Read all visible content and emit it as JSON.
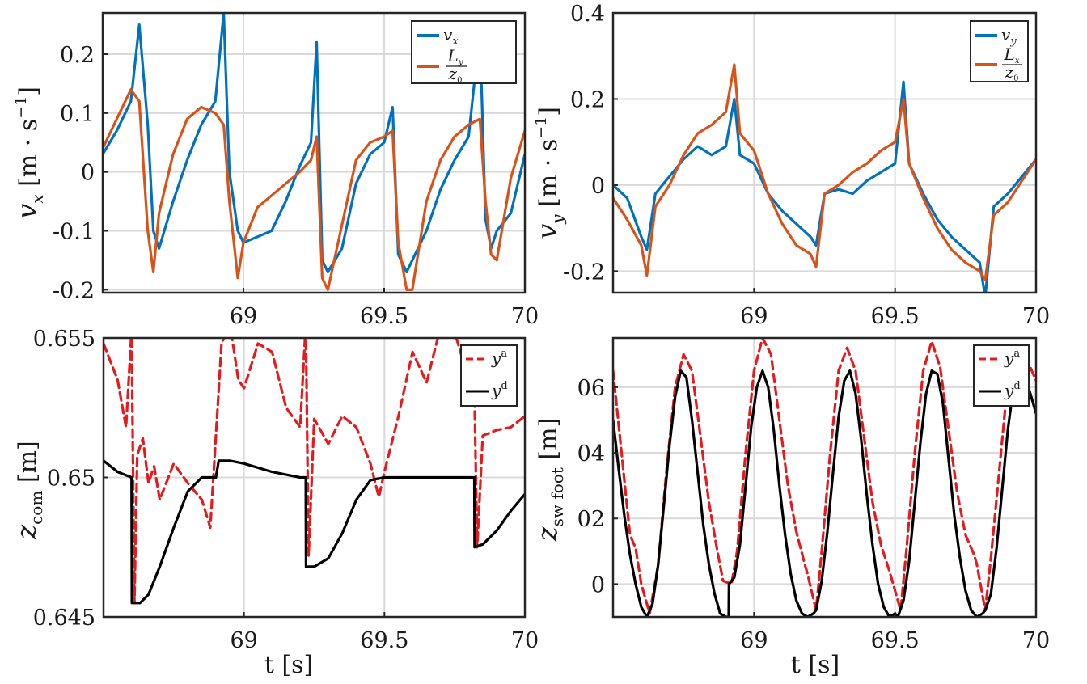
{
  "colors": {
    "blue": "#0072BD",
    "orange": "#D95319",
    "red": "#E41A1C",
    "black": "#000000"
  },
  "chart_data": [
    {
      "id": "vx",
      "type": "line",
      "ylabel": "v_x [m · s^-1]",
      "xlabel": "",
      "xlim": [
        68.5,
        70
      ],
      "ylim": [
        -0.205,
        0.27
      ],
      "xticks": [
        69,
        69.5,
        70
      ],
      "xtick_labels": [
        "69",
        "69.5",
        "70"
      ],
      "yticks": [
        -0.2,
        -0.1,
        0,
        0.1,
        0.2
      ],
      "ytick_labels": [
        "-0.2",
        "-0.1",
        "0",
        "0.1",
        "0.2"
      ],
      "legend_position": "top-right",
      "series": [
        {
          "name": "v_x",
          "color_key": "blue",
          "dashed": false,
          "x": [
            68.5,
            68.55,
            68.6,
            68.63,
            68.66,
            68.68,
            68.7,
            68.75,
            68.8,
            68.85,
            68.9,
            68.93,
            68.95,
            68.98,
            69.0,
            69.05,
            69.1,
            69.15,
            69.2,
            69.24,
            69.26,
            69.28,
            69.3,
            69.35,
            69.4,
            69.45,
            69.5,
            69.53,
            69.55,
            69.58,
            69.6,
            69.65,
            69.7,
            69.75,
            69.8,
            69.84,
            69.86,
            69.88,
            69.9,
            69.95,
            70.0
          ],
          "y": [
            0.03,
            0.07,
            0.12,
            0.25,
            0.08,
            -0.1,
            -0.13,
            -0.05,
            0.02,
            0.08,
            0.12,
            0.27,
            0.0,
            -0.1,
            -0.12,
            -0.11,
            -0.1,
            -0.05,
            0.01,
            0.05,
            0.22,
            -0.15,
            -0.17,
            -0.13,
            -0.02,
            0.03,
            0.05,
            0.11,
            -0.14,
            -0.17,
            -0.15,
            -0.1,
            -0.03,
            0.02,
            0.06,
            0.24,
            -0.08,
            -0.13,
            -0.1,
            -0.07,
            0.03
          ]
        },
        {
          "name": "L_y / z_0",
          "color_key": "orange",
          "dashed": false,
          "x": [
            68.5,
            68.55,
            68.6,
            68.63,
            68.66,
            68.68,
            68.7,
            68.75,
            68.8,
            68.85,
            68.9,
            68.93,
            68.95,
            68.98,
            69.0,
            69.05,
            69.1,
            69.15,
            69.2,
            69.24,
            69.26,
            69.28,
            69.3,
            69.35,
            69.4,
            69.45,
            69.5,
            69.53,
            69.55,
            69.58,
            69.6,
            69.65,
            69.7,
            69.75,
            69.8,
            69.84,
            69.86,
            69.88,
            69.9,
            69.95,
            70.0
          ],
          "y": [
            0.04,
            0.09,
            0.14,
            0.12,
            -0.1,
            -0.17,
            -0.07,
            0.03,
            0.09,
            0.11,
            0.1,
            0.08,
            -0.05,
            -0.18,
            -0.12,
            -0.06,
            -0.04,
            -0.02,
            0.0,
            0.02,
            0.06,
            -0.18,
            -0.2,
            -0.09,
            0.02,
            0.05,
            0.06,
            0.07,
            -0.12,
            -0.2,
            -0.2,
            -0.05,
            0.02,
            0.06,
            0.08,
            0.09,
            -0.05,
            -0.14,
            -0.15,
            -0.01,
            0.07
          ]
        }
      ]
    },
    {
      "id": "vy",
      "type": "line",
      "ylabel": "v_y [m · s^-1]",
      "xlabel": "",
      "xlim": [
        68.5,
        70
      ],
      "ylim": [
        -0.25,
        0.4
      ],
      "xticks": [
        69,
        69.5,
        70
      ],
      "xtick_labels": [
        "69",
        "69.5",
        "70"
      ],
      "yticks": [
        -0.2,
        0,
        0.2,
        0.4
      ],
      "ytick_labels": [
        "-0.2",
        "0",
        "0.2",
        "0.4"
      ],
      "legend_position": "top-right",
      "series": [
        {
          "name": "v_y",
          "color_key": "blue",
          "dashed": false,
          "x": [
            68.5,
            68.55,
            68.6,
            68.62,
            68.65,
            68.7,
            68.75,
            68.8,
            68.85,
            68.9,
            68.93,
            68.95,
            69.0,
            69.05,
            69.1,
            69.15,
            69.2,
            69.22,
            69.25,
            69.3,
            69.35,
            69.4,
            69.45,
            69.5,
            69.53,
            69.55,
            69.6,
            69.65,
            69.7,
            69.75,
            69.8,
            69.82,
            69.85,
            69.9,
            69.95,
            70.0
          ],
          "y": [
            0.0,
            -0.03,
            -0.12,
            -0.15,
            -0.02,
            0.02,
            0.06,
            0.09,
            0.07,
            0.09,
            0.2,
            0.07,
            0.05,
            -0.02,
            -0.06,
            -0.09,
            -0.12,
            -0.14,
            -0.02,
            -0.01,
            -0.02,
            0.01,
            0.03,
            0.05,
            0.24,
            0.05,
            -0.02,
            -0.08,
            -0.12,
            -0.15,
            -0.18,
            -0.26,
            -0.05,
            -0.02,
            0.02,
            0.06
          ]
        },
        {
          "name": "L_x / z_0",
          "color_key": "orange",
          "dashed": false,
          "x": [
            68.5,
            68.55,
            68.6,
            68.62,
            68.65,
            68.7,
            68.75,
            68.8,
            68.85,
            68.9,
            68.93,
            68.95,
            69.0,
            69.05,
            69.1,
            69.15,
            69.2,
            69.22,
            69.25,
            69.3,
            69.35,
            69.4,
            69.45,
            69.5,
            69.53,
            69.55,
            69.6,
            69.65,
            69.7,
            69.75,
            69.8,
            69.82,
            69.85,
            69.9,
            69.95,
            70.0
          ],
          "y": [
            -0.03,
            -0.08,
            -0.14,
            -0.21,
            -0.05,
            0.0,
            0.07,
            0.12,
            0.14,
            0.17,
            0.28,
            0.12,
            0.08,
            -0.02,
            -0.09,
            -0.14,
            -0.16,
            -0.19,
            -0.02,
            0.0,
            0.03,
            0.05,
            0.08,
            0.1,
            0.2,
            0.05,
            -0.03,
            -0.1,
            -0.15,
            -0.18,
            -0.2,
            -0.22,
            -0.07,
            -0.04,
            0.01,
            0.06
          ]
        }
      ]
    },
    {
      "id": "zcom",
      "type": "line",
      "ylabel": "z_com [m]",
      "xlabel": "t [s]",
      "xlim": [
        68.5,
        70
      ],
      "ylim": [
        0.645,
        0.655
      ],
      "xticks": [
        69,
        69.5,
        70
      ],
      "xtick_labels": [
        "69",
        "69.5",
        "70"
      ],
      "yticks": [
        0.645,
        0.65,
        0.655
      ],
      "ytick_labels": [
        "0.645",
        "0.65",
        "0.655"
      ],
      "legend_position": "top-right",
      "series": [
        {
          "name": "y^a",
          "color_key": "red",
          "dashed": true,
          "x": [
            68.5,
            68.55,
            68.58,
            68.6,
            68.61,
            68.62,
            68.64,
            68.66,
            68.68,
            68.7,
            68.75,
            68.8,
            68.85,
            68.88,
            68.92,
            68.95,
            68.98,
            69.0,
            69.05,
            69.1,
            69.15,
            69.2,
            69.22,
            69.23,
            69.25,
            69.3,
            69.35,
            69.4,
            69.45,
            69.48,
            69.5,
            69.55,
            69.6,
            69.65,
            69.7,
            69.75,
            69.8,
            69.82,
            69.83,
            69.85,
            69.9,
            69.95,
            70.0
          ],
          "y": [
            0.6548,
            0.6535,
            0.6518,
            0.6553,
            0.6455,
            0.6508,
            0.6514,
            0.6498,
            0.6504,
            0.6492,
            0.6505,
            0.6498,
            0.6492,
            0.6482,
            0.6548,
            0.6555,
            0.6535,
            0.6532,
            0.6548,
            0.6545,
            0.6525,
            0.6518,
            0.6555,
            0.6472,
            0.6521,
            0.6512,
            0.6522,
            0.6518,
            0.6505,
            0.6493,
            0.6502,
            0.6522,
            0.6545,
            0.6534,
            0.6554,
            0.6552,
            0.6535,
            0.6532,
            0.6475,
            0.6515,
            0.6517,
            0.6518,
            0.6522
          ]
        },
        {
          "name": "y^d",
          "color_key": "black",
          "dashed": false,
          "x": [
            68.5,
            68.55,
            68.6,
            68.601,
            68.63,
            68.66,
            68.7,
            68.75,
            68.8,
            68.85,
            68.9,
            68.91,
            68.95,
            69.0,
            69.1,
            69.15,
            69.2,
            69.22,
            69.221,
            69.25,
            69.3,
            69.35,
            69.4,
            69.45,
            69.5,
            69.6,
            69.7,
            69.8,
            69.82,
            69.821,
            69.85,
            69.9,
            69.95,
            70.0
          ],
          "y": [
            0.6506,
            0.6502,
            0.65,
            0.6455,
            0.6455,
            0.6458,
            0.6468,
            0.6482,
            0.6495,
            0.65,
            0.65,
            0.6506,
            0.6506,
            0.6505,
            0.6502,
            0.6501,
            0.65,
            0.65,
            0.6468,
            0.6468,
            0.6471,
            0.648,
            0.6492,
            0.6499,
            0.65,
            0.65,
            0.65,
            0.65,
            0.65,
            0.6475,
            0.6476,
            0.6481,
            0.6488,
            0.6494
          ]
        }
      ]
    },
    {
      "id": "zswfoot",
      "type": "line",
      "ylabel": "z_sw foot [m]",
      "xlabel": "t [s]",
      "xlim": [
        68.5,
        70
      ],
      "ylim": [
        -0.01,
        0.075
      ],
      "xticks": [
        69,
        69.5,
        70
      ],
      "xtick_labels": [
        "69",
        "69.5",
        "70"
      ],
      "yticks": [
        0,
        0.02,
        0.04,
        0.06
      ],
      "ytick_labels": [
        "0",
        "02",
        "04",
        "06"
      ],
      "legend_position": "top-right",
      "series": [
        {
          "name": "y^a",
          "color_key": "red",
          "dashed": true,
          "x": [
            68.5,
            68.53,
            68.56,
            68.58,
            68.6,
            68.63,
            68.66,
            68.69,
            68.72,
            68.75,
            68.78,
            68.81,
            68.84,
            68.87,
            68.89,
            68.92,
            68.94,
            68.97,
            69.0,
            69.03,
            69.06,
            69.09,
            69.12,
            69.15,
            69.18,
            69.19,
            69.22,
            69.24,
            69.27,
            69.3,
            69.33,
            69.36,
            69.39,
            69.42,
            69.45,
            69.48,
            69.49,
            69.52,
            69.54,
            69.57,
            69.6,
            69.63,
            69.66,
            69.69,
            69.72,
            69.75,
            69.78,
            69.79,
            69.82,
            69.84,
            69.87,
            69.9,
            69.93,
            69.96,
            70.0
          ],
          "y": [
            0.065,
            0.04,
            0.015,
            0.011,
            0.0,
            -0.009,
            0.006,
            0.035,
            0.06,
            0.07,
            0.065,
            0.045,
            0.025,
            0.01,
            0.001,
            0.0,
            0.01,
            0.04,
            0.065,
            0.075,
            0.07,
            0.05,
            0.03,
            0.016,
            0.006,
            0.003,
            -0.008,
            0.01,
            0.04,
            0.065,
            0.072,
            0.065,
            0.045,
            0.025,
            0.012,
            0.004,
            0.001,
            -0.008,
            0.01,
            0.04,
            0.065,
            0.074,
            0.066,
            0.047,
            0.028,
            0.015,
            0.009,
            0.006,
            -0.008,
            0.008,
            0.035,
            0.062,
            0.073,
            0.07,
            0.062
          ]
        },
        {
          "name": "y^d",
          "color_key": "black",
          "dashed": false,
          "x": [
            68.5,
            68.52,
            68.54,
            68.56,
            68.58,
            68.6,
            68.62,
            68.64,
            68.66,
            68.68,
            68.7,
            68.72,
            68.74,
            68.76,
            68.78,
            68.8,
            68.82,
            68.84,
            68.86,
            68.88,
            68.9,
            68.91,
            68.911,
            68.93,
            68.95,
            68.97,
            68.99,
            69.01,
            69.03,
            69.05,
            69.07,
            69.09,
            69.11,
            69.13,
            69.15,
            69.17,
            69.19,
            69.21,
            69.22,
            69.24,
            69.26,
            69.28,
            69.3,
            69.32,
            69.34,
            69.36,
            69.38,
            69.4,
            69.42,
            69.44,
            69.46,
            69.48,
            69.5,
            69.51,
            69.53,
            69.55,
            69.57,
            69.59,
            69.61,
            69.63,
            69.65,
            69.67,
            69.69,
            69.71,
            69.73,
            69.75,
            69.77,
            69.79,
            69.81,
            69.82,
            69.84,
            69.86,
            69.88,
            69.9,
            69.92,
            69.94,
            69.96,
            69.98,
            70.0
          ],
          "y": [
            0.05,
            0.035,
            0.021,
            0.009,
            0.0,
            -0.007,
            -0.01,
            -0.006,
            0.006,
            0.024,
            0.042,
            0.057,
            0.065,
            0.063,
            0.05,
            0.034,
            0.018,
            0.006,
            -0.003,
            -0.009,
            -0.01,
            -0.01,
            0.0,
            0.002,
            0.012,
            0.03,
            0.048,
            0.06,
            0.065,
            0.06,
            0.047,
            0.03,
            0.015,
            0.003,
            -0.005,
            -0.009,
            -0.01,
            -0.009,
            -0.008,
            0.001,
            0.016,
            0.034,
            0.051,
            0.062,
            0.065,
            0.058,
            0.044,
            0.027,
            0.012,
            0.0,
            -0.007,
            -0.01,
            -0.009,
            -0.01,
            -0.005,
            0.007,
            0.025,
            0.043,
            0.058,
            0.065,
            0.064,
            0.055,
            0.038,
            0.021,
            0.008,
            -0.002,
            -0.008,
            -0.01,
            -0.009,
            -0.008,
            -0.003,
            0.011,
            0.029,
            0.047,
            0.06,
            0.065,
            0.063,
            0.058,
            0.052
          ]
        }
      ]
    }
  ]
}
